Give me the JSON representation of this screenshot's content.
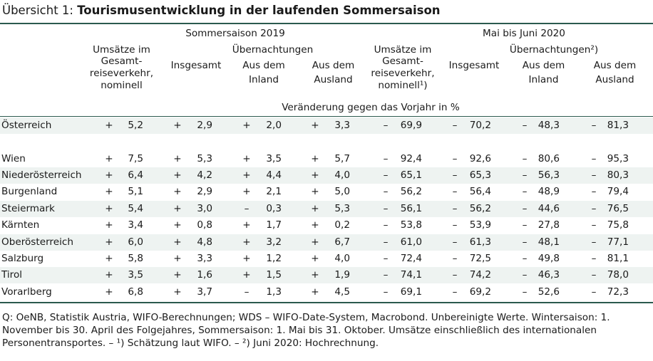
{
  "title": {
    "prefix": "Übersicht 1: ",
    "text": "Tourismusentwicklung in der laufenden Sommersaison"
  },
  "header": {
    "group_2019": "Sommersaison 2019",
    "group_2020": "Mai bis Juni 2020",
    "col_umsatz_2019": [
      "Umsätze im",
      "Gesamt-",
      "reiseverkehr,",
      "nominell"
    ],
    "uebernachtungen_2019": "Übernachtungen",
    "col_umsatz_2020": [
      "Umsätze im",
      "Gesamt-",
      "reiseverkehr,",
      "nominell¹)"
    ],
    "uebernachtungen_2020": "Übernachtungen²)",
    "insgesamt": "Insgesamt",
    "inland": [
      "Aus dem",
      "Inland"
    ],
    "ausland": [
      "Aus dem",
      "Ausland"
    ],
    "unit": "Veränderung gegen das Vorjahr in %"
  },
  "rows": [
    {
      "region": "Österreich",
      "values": [
        [
          "+",
          "5,2"
        ],
        [
          "+",
          "2,9"
        ],
        [
          "+",
          "2,0"
        ],
        [
          "+",
          "3,3"
        ],
        [
          "–",
          "69,9"
        ],
        [
          "–",
          "70,2"
        ],
        [
          "–",
          "48,3"
        ],
        [
          "–",
          "81,3"
        ]
      ]
    },
    {
      "region": "Wien",
      "values": [
        [
          "+",
          "7,5"
        ],
        [
          "+",
          "5,3"
        ],
        [
          "+",
          "3,5"
        ],
        [
          "+",
          "5,7"
        ],
        [
          "–",
          "92,4"
        ],
        [
          "–",
          "92,6"
        ],
        [
          "–",
          "80,6"
        ],
        [
          "–",
          "95,3"
        ]
      ]
    },
    {
      "region": "Niederösterreich",
      "values": [
        [
          "+",
          "6,4"
        ],
        [
          "+",
          "4,2"
        ],
        [
          "+",
          "4,4"
        ],
        [
          "+",
          "4,0"
        ],
        [
          "–",
          "65,1"
        ],
        [
          "–",
          "65,3"
        ],
        [
          "–",
          "56,3"
        ],
        [
          "–",
          "80,3"
        ]
      ]
    },
    {
      "region": "Burgenland",
      "values": [
        [
          "+",
          "5,1"
        ],
        [
          "+",
          "2,9"
        ],
        [
          "+",
          "2,1"
        ],
        [
          "+",
          "5,0"
        ],
        [
          "–",
          "56,2"
        ],
        [
          "–",
          "56,4"
        ],
        [
          "–",
          "48,9"
        ],
        [
          "–",
          "79,4"
        ]
      ]
    },
    {
      "region": "Steiermark",
      "values": [
        [
          "+",
          "5,4"
        ],
        [
          "+",
          "3,0"
        ],
        [
          "–",
          "0,3"
        ],
        [
          "+",
          "5,3"
        ],
        [
          "–",
          "56,1"
        ],
        [
          "–",
          "56,2"
        ],
        [
          "–",
          "44,6"
        ],
        [
          "–",
          "76,5"
        ]
      ]
    },
    {
      "region": "Kärnten",
      "values": [
        [
          "+",
          "3,4"
        ],
        [
          "+",
          "0,8"
        ],
        [
          "+",
          "1,7"
        ],
        [
          "+",
          "0,2"
        ],
        [
          "–",
          "53,8"
        ],
        [
          "–",
          "53,9"
        ],
        [
          "–",
          "27,8"
        ],
        [
          "–",
          "75,8"
        ]
      ]
    },
    {
      "region": "Oberösterreich",
      "values": [
        [
          "+",
          "6,0"
        ],
        [
          "+",
          "4,8"
        ],
        [
          "+",
          "3,2"
        ],
        [
          "+",
          "6,7"
        ],
        [
          "–",
          "61,0"
        ],
        [
          "–",
          "61,3"
        ],
        [
          "–",
          "48,1"
        ],
        [
          "–",
          "77,1"
        ]
      ]
    },
    {
      "region": "Salzburg",
      "values": [
        [
          "+",
          "5,8"
        ],
        [
          "+",
          "3,3"
        ],
        [
          "+",
          "1,2"
        ],
        [
          "+",
          "4,0"
        ],
        [
          "–",
          "72,4"
        ],
        [
          "–",
          "72,5"
        ],
        [
          "–",
          "49,8"
        ],
        [
          "–",
          "81,1"
        ]
      ]
    },
    {
      "region": "Tirol",
      "values": [
        [
          "+",
          "3,5"
        ],
        [
          "+",
          "1,6"
        ],
        [
          "+",
          "1,5"
        ],
        [
          "+",
          "1,9"
        ],
        [
          "–",
          "74,1"
        ],
        [
          "–",
          "74,2"
        ],
        [
          "–",
          "46,3"
        ],
        [
          "–",
          "78,0"
        ]
      ]
    },
    {
      "region": "Vorarlberg",
      "values": [
        [
          "+",
          "6,8"
        ],
        [
          "+",
          "3,7"
        ],
        [
          "–",
          "1,3"
        ],
        [
          "+",
          "4,5"
        ],
        [
          "–",
          "69,1"
        ],
        [
          "–",
          "69,2"
        ],
        [
          "–",
          "52,6"
        ],
        [
          "–",
          "72,3"
        ]
      ]
    }
  ],
  "footnote": "Q: OeNB, Statistik Austria, WIFO-Berechnungen; WDS – WIFO-Date-System, Macrobond. Unbereinigte Werte. Wintersaison: 1. November bis 30. April des Folgejahres, Sommersaison: 1. Mai bis 31. Oktober. Umsätze einschließlich des internationalen Personentransportes. – ¹) Schätzung laut WIFO. – ²) Juni 2020: Hochrechnung."
}
